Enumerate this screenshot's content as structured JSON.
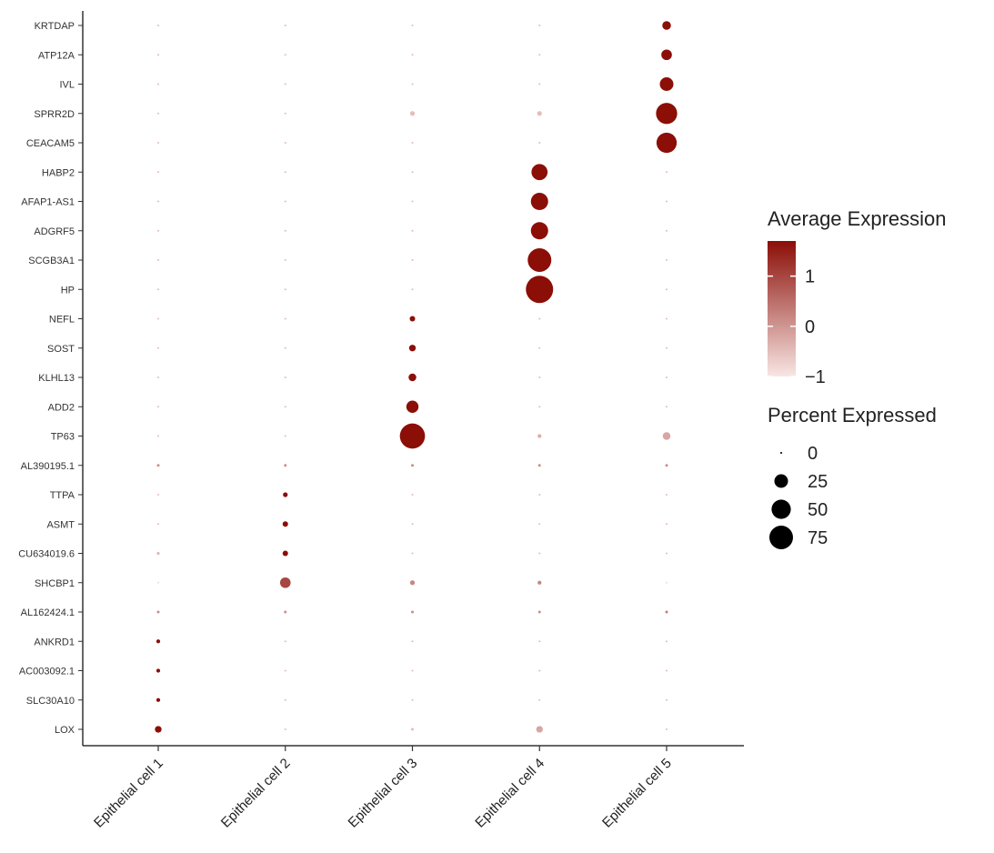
{
  "chart_data": {
    "type": "dotplot",
    "categories": [
      "Epithelial cell 1",
      "Epithelial cell 2",
      "Epithelial cell 3",
      "Epithelial cell 4",
      "Epithelial cell 5"
    ],
    "genes": [
      "KRTDAP",
      "ATP12A",
      "IVL",
      "SPRR2D",
      "CEACAM5",
      "HABP2",
      "AFAP1-AS1",
      "ADGRF5",
      "SCGB3A1",
      "HP",
      "NEFL",
      "SOST",
      "KLHL13",
      "ADD2",
      "TP63",
      "AL390195.1",
      "TTPA",
      "ASMT",
      "CU634019.6",
      "SHCBP1",
      "AL162424.1",
      "ANKRD1",
      "AC003092.1",
      "SLC30A10",
      "LOX"
    ],
    "points": [
      {
        "gene": "KRTDAP",
        "cell": "Epithelial cell 1",
        "pct": 0.5,
        "avg": -0.5
      },
      {
        "gene": "KRTDAP",
        "cell": "Epithelial cell 2",
        "pct": 0.5,
        "avg": -0.5
      },
      {
        "gene": "KRTDAP",
        "cell": "Epithelial cell 3",
        "pct": 0.5,
        "avg": -0.5
      },
      {
        "gene": "KRTDAP",
        "cell": "Epithelial cell 4",
        "pct": 0.5,
        "avg": -0.5
      },
      {
        "gene": "KRTDAP",
        "cell": "Epithelial cell 5",
        "pct": 10,
        "avg": 1.7
      },
      {
        "gene": "ATP12A",
        "cell": "Epithelial cell 1",
        "pct": 0.5,
        "avg": -0.5
      },
      {
        "gene": "ATP12A",
        "cell": "Epithelial cell 2",
        "pct": 0.5,
        "avg": -0.5
      },
      {
        "gene": "ATP12A",
        "cell": "Epithelial cell 3",
        "pct": 0.5,
        "avg": -0.5
      },
      {
        "gene": "ATP12A",
        "cell": "Epithelial cell 4",
        "pct": 0.5,
        "avg": -0.5
      },
      {
        "gene": "ATP12A",
        "cell": "Epithelial cell 5",
        "pct": 15,
        "avg": 1.7
      },
      {
        "gene": "IVL",
        "cell": "Epithelial cell 1",
        "pct": 0.5,
        "avg": -0.5
      },
      {
        "gene": "IVL",
        "cell": "Epithelial cell 2",
        "pct": 0.5,
        "avg": -0.5
      },
      {
        "gene": "IVL",
        "cell": "Epithelial cell 3",
        "pct": 0.5,
        "avg": -0.5
      },
      {
        "gene": "IVL",
        "cell": "Epithelial cell 4",
        "pct": 0.5,
        "avg": -0.5
      },
      {
        "gene": "IVL",
        "cell": "Epithelial cell 5",
        "pct": 25,
        "avg": 1.7
      },
      {
        "gene": "SPRR2D",
        "cell": "Epithelial cell 1",
        "pct": 0.5,
        "avg": -0.5
      },
      {
        "gene": "SPRR2D",
        "cell": "Epithelial cell 2",
        "pct": 0.5,
        "avg": -0.5
      },
      {
        "gene": "SPRR2D",
        "cell": "Epithelial cell 3",
        "pct": 3,
        "avg": -0.5
      },
      {
        "gene": "SPRR2D",
        "cell": "Epithelial cell 4",
        "pct": 3,
        "avg": -0.5
      },
      {
        "gene": "SPRR2D",
        "cell": "Epithelial cell 5",
        "pct": 60,
        "avg": 1.7
      },
      {
        "gene": "CEACAM5",
        "cell": "Epithelial cell 1",
        "pct": 0.5,
        "avg": -0.5
      },
      {
        "gene": "CEACAM5",
        "cell": "Epithelial cell 2",
        "pct": 0.5,
        "avg": -0.5
      },
      {
        "gene": "CEACAM5",
        "cell": "Epithelial cell 3",
        "pct": 0.5,
        "avg": -0.5
      },
      {
        "gene": "CEACAM5",
        "cell": "Epithelial cell 4",
        "pct": 0.5,
        "avg": -0.5
      },
      {
        "gene": "CEACAM5",
        "cell": "Epithelial cell 5",
        "pct": 55,
        "avg": 1.7
      },
      {
        "gene": "HABP2",
        "cell": "Epithelial cell 1",
        "pct": 0.5,
        "avg": -0.5
      },
      {
        "gene": "HABP2",
        "cell": "Epithelial cell 2",
        "pct": 0.5,
        "avg": -0.5
      },
      {
        "gene": "HABP2",
        "cell": "Epithelial cell 3",
        "pct": 0.5,
        "avg": -0.5
      },
      {
        "gene": "HABP2",
        "cell": "Epithelial cell 4",
        "pct": 35,
        "avg": 1.7
      },
      {
        "gene": "HABP2",
        "cell": "Epithelial cell 5",
        "pct": 0.5,
        "avg": -0.5
      },
      {
        "gene": "AFAP1-AS1",
        "cell": "Epithelial cell 1",
        "pct": 0.5,
        "avg": -0.5
      },
      {
        "gene": "AFAP1-AS1",
        "cell": "Epithelial cell 2",
        "pct": 0.5,
        "avg": -0.5
      },
      {
        "gene": "AFAP1-AS1",
        "cell": "Epithelial cell 3",
        "pct": 0.5,
        "avg": -0.5
      },
      {
        "gene": "AFAP1-AS1",
        "cell": "Epithelial cell 4",
        "pct": 40,
        "avg": 1.7
      },
      {
        "gene": "AFAP1-AS1",
        "cell": "Epithelial cell 5",
        "pct": 0.5,
        "avg": -0.5
      },
      {
        "gene": "ADGRF5",
        "cell": "Epithelial cell 1",
        "pct": 0.5,
        "avg": -0.5
      },
      {
        "gene": "ADGRF5",
        "cell": "Epithelial cell 2",
        "pct": 0.5,
        "avg": -0.5
      },
      {
        "gene": "ADGRF5",
        "cell": "Epithelial cell 3",
        "pct": 0.5,
        "avg": -0.5
      },
      {
        "gene": "ADGRF5",
        "cell": "Epithelial cell 4",
        "pct": 40,
        "avg": 1.7
      },
      {
        "gene": "ADGRF5",
        "cell": "Epithelial cell 5",
        "pct": 0.5,
        "avg": -0.5
      },
      {
        "gene": "SCGB3A1",
        "cell": "Epithelial cell 1",
        "pct": 0.5,
        "avg": -0.5
      },
      {
        "gene": "SCGB3A1",
        "cell": "Epithelial cell 2",
        "pct": 0.5,
        "avg": -0.5
      },
      {
        "gene": "SCGB3A1",
        "cell": "Epithelial cell 3",
        "pct": 0.5,
        "avg": -0.5
      },
      {
        "gene": "SCGB3A1",
        "cell": "Epithelial cell 4",
        "pct": 75,
        "avg": 1.7
      },
      {
        "gene": "SCGB3A1",
        "cell": "Epithelial cell 5",
        "pct": 0.5,
        "avg": -0.5
      },
      {
        "gene": "HP",
        "cell": "Epithelial cell 1",
        "pct": 0.5,
        "avg": -0.5
      },
      {
        "gene": "HP",
        "cell": "Epithelial cell 2",
        "pct": 0.5,
        "avg": -0.5
      },
      {
        "gene": "HP",
        "cell": "Epithelial cell 3",
        "pct": 0.5,
        "avg": -0.5
      },
      {
        "gene": "HP",
        "cell": "Epithelial cell 4",
        "pct": 100,
        "avg": 1.7
      },
      {
        "gene": "HP",
        "cell": "Epithelial cell 5",
        "pct": 0.5,
        "avg": -0.5
      },
      {
        "gene": "NEFL",
        "cell": "Epithelial cell 1",
        "pct": 0.5,
        "avg": -0.5
      },
      {
        "gene": "NEFL",
        "cell": "Epithelial cell 2",
        "pct": 0.5,
        "avg": -0.5
      },
      {
        "gene": "NEFL",
        "cell": "Epithelial cell 3",
        "pct": 4,
        "avg": 1.7
      },
      {
        "gene": "NEFL",
        "cell": "Epithelial cell 4",
        "pct": 0.5,
        "avg": -0.5
      },
      {
        "gene": "NEFL",
        "cell": "Epithelial cell 5",
        "pct": 0.5,
        "avg": -0.5
      },
      {
        "gene": "SOST",
        "cell": "Epithelial cell 1",
        "pct": 0.5,
        "avg": -0.5
      },
      {
        "gene": "SOST",
        "cell": "Epithelial cell 2",
        "pct": 0.5,
        "avg": -0.5
      },
      {
        "gene": "SOST",
        "cell": "Epithelial cell 3",
        "pct": 6,
        "avg": 1.7
      },
      {
        "gene": "SOST",
        "cell": "Epithelial cell 4",
        "pct": 0.5,
        "avg": -0.5
      },
      {
        "gene": "SOST",
        "cell": "Epithelial cell 5",
        "pct": 0.5,
        "avg": -0.5
      },
      {
        "gene": "KLHL13",
        "cell": "Epithelial cell 1",
        "pct": 0.5,
        "avg": -0.5
      },
      {
        "gene": "KLHL13",
        "cell": "Epithelial cell 2",
        "pct": 0.5,
        "avg": -0.5
      },
      {
        "gene": "KLHL13",
        "cell": "Epithelial cell 3",
        "pct": 8,
        "avg": 1.7
      },
      {
        "gene": "KLHL13",
        "cell": "Epithelial cell 4",
        "pct": 0.5,
        "avg": -0.5
      },
      {
        "gene": "KLHL13",
        "cell": "Epithelial cell 5",
        "pct": 0.5,
        "avg": -0.5
      },
      {
        "gene": "ADD2",
        "cell": "Epithelial cell 1",
        "pct": 0.5,
        "avg": -0.5
      },
      {
        "gene": "ADD2",
        "cell": "Epithelial cell 2",
        "pct": 0.5,
        "avg": -0.5
      },
      {
        "gene": "ADD2",
        "cell": "Epithelial cell 3",
        "pct": 20,
        "avg": 1.7
      },
      {
        "gene": "ADD2",
        "cell": "Epithelial cell 4",
        "pct": 0.5,
        "avg": -0.5
      },
      {
        "gene": "ADD2",
        "cell": "Epithelial cell 5",
        "pct": 0.5,
        "avg": -0.5
      },
      {
        "gene": "TP63",
        "cell": "Epithelial cell 1",
        "pct": 0.5,
        "avg": -0.5
      },
      {
        "gene": "TP63",
        "cell": "Epithelial cell 2",
        "pct": 0.5,
        "avg": -0.5
      },
      {
        "gene": "TP63",
        "cell": "Epithelial cell 3",
        "pct": 85,
        "avg": 1.7
      },
      {
        "gene": "TP63",
        "cell": "Epithelial cell 4",
        "pct": 2,
        "avg": -0.3
      },
      {
        "gene": "TP63",
        "cell": "Epithelial cell 5",
        "pct": 8,
        "avg": -0.2
      },
      {
        "gene": "AL390195.1",
        "cell": "Epithelial cell 1",
        "pct": 1,
        "avg": 0.1
      },
      {
        "gene": "AL390195.1",
        "cell": "Epithelial cell 2",
        "pct": 1,
        "avg": 0.1
      },
      {
        "gene": "AL390195.1",
        "cell": "Epithelial cell 3",
        "pct": 1,
        "avg": 0.1
      },
      {
        "gene": "AL390195.1",
        "cell": "Epithelial cell 4",
        "pct": 1,
        "avg": 0.1
      },
      {
        "gene": "AL390195.1",
        "cell": "Epithelial cell 5",
        "pct": 1,
        "avg": 0.1
      },
      {
        "gene": "TTPA",
        "cell": "Epithelial cell 1",
        "pct": 0.5,
        "avg": -0.5
      },
      {
        "gene": "TTPA",
        "cell": "Epithelial cell 2",
        "pct": 3,
        "avg": 1.7
      },
      {
        "gene": "TTPA",
        "cell": "Epithelial cell 3",
        "pct": 0.5,
        "avg": -0.5
      },
      {
        "gene": "TTPA",
        "cell": "Epithelial cell 4",
        "pct": 0.5,
        "avg": -0.5
      },
      {
        "gene": "TTPA",
        "cell": "Epithelial cell 5",
        "pct": 0.5,
        "avg": -0.5
      },
      {
        "gene": "ASMT",
        "cell": "Epithelial cell 1",
        "pct": 0.5,
        "avg": -0.5
      },
      {
        "gene": "ASMT",
        "cell": "Epithelial cell 2",
        "pct": 4,
        "avg": 1.7
      },
      {
        "gene": "ASMT",
        "cell": "Epithelial cell 3",
        "pct": 0.5,
        "avg": -0.5
      },
      {
        "gene": "ASMT",
        "cell": "Epithelial cell 4",
        "pct": 0.5,
        "avg": -0.5
      },
      {
        "gene": "ASMT",
        "cell": "Epithelial cell 5",
        "pct": 0.5,
        "avg": -0.5
      },
      {
        "gene": "CU634019.6",
        "cell": "Epithelial cell 1",
        "pct": 1,
        "avg": -0.3
      },
      {
        "gene": "CU634019.6",
        "cell": "Epithelial cell 2",
        "pct": 4,
        "avg": 1.7
      },
      {
        "gene": "CU634019.6",
        "cell": "Epithelial cell 3",
        "pct": 0.5,
        "avg": -0.5
      },
      {
        "gene": "CU634019.6",
        "cell": "Epithelial cell 4",
        "pct": 0.5,
        "avg": -0.5
      },
      {
        "gene": "CU634019.6",
        "cell": "Epithelial cell 5",
        "pct": 0.5,
        "avg": -0.5
      },
      {
        "gene": "SHCBP1",
        "cell": "Epithelial cell 1",
        "pct": 0.3,
        "avg": -0.8
      },
      {
        "gene": "SHCBP1",
        "cell": "Epithelial cell 2",
        "pct": 15,
        "avg": 1.0
      },
      {
        "gene": "SHCBP1",
        "cell": "Epithelial cell 3",
        "pct": 3,
        "avg": 0.2
      },
      {
        "gene": "SHCBP1",
        "cell": "Epithelial cell 4",
        "pct": 2,
        "avg": 0.2
      },
      {
        "gene": "SHCBP1",
        "cell": "Epithelial cell 5",
        "pct": 0.3,
        "avg": -0.8
      },
      {
        "gene": "AL162424.1",
        "cell": "Epithelial cell 1",
        "pct": 1,
        "avg": 0.1
      },
      {
        "gene": "AL162424.1",
        "cell": "Epithelial cell 2",
        "pct": 1,
        "avg": 0.1
      },
      {
        "gene": "AL162424.1",
        "cell": "Epithelial cell 3",
        "pct": 1,
        "avg": 0.1
      },
      {
        "gene": "AL162424.1",
        "cell": "Epithelial cell 4",
        "pct": 1,
        "avg": 0.1
      },
      {
        "gene": "AL162424.1",
        "cell": "Epithelial cell 5",
        "pct": 1,
        "avg": 0.3
      },
      {
        "gene": "ANKRD1",
        "cell": "Epithelial cell 1",
        "pct": 2,
        "avg": 1.7
      },
      {
        "gene": "ANKRD1",
        "cell": "Epithelial cell 2",
        "pct": 0.5,
        "avg": -0.5
      },
      {
        "gene": "ANKRD1",
        "cell": "Epithelial cell 3",
        "pct": 0.5,
        "avg": -0.5
      },
      {
        "gene": "ANKRD1",
        "cell": "Epithelial cell 4",
        "pct": 0.5,
        "avg": -0.5
      },
      {
        "gene": "ANKRD1",
        "cell": "Epithelial cell 5",
        "pct": 0.5,
        "avg": -0.5
      },
      {
        "gene": "AC003092.1",
        "cell": "Epithelial cell 1",
        "pct": 2,
        "avg": 1.7
      },
      {
        "gene": "AC003092.1",
        "cell": "Epithelial cell 2",
        "pct": 0.5,
        "avg": -0.5
      },
      {
        "gene": "AC003092.1",
        "cell": "Epithelial cell 3",
        "pct": 0.5,
        "avg": -0.5
      },
      {
        "gene": "AC003092.1",
        "cell": "Epithelial cell 4",
        "pct": 0.5,
        "avg": -0.5
      },
      {
        "gene": "AC003092.1",
        "cell": "Epithelial cell 5",
        "pct": 0.5,
        "avg": -0.5
      },
      {
        "gene": "SLC30A10",
        "cell": "Epithelial cell 1",
        "pct": 2,
        "avg": 1.7
      },
      {
        "gene": "SLC30A10",
        "cell": "Epithelial cell 2",
        "pct": 0.5,
        "avg": -0.5
      },
      {
        "gene": "SLC30A10",
        "cell": "Epithelial cell 3",
        "pct": 0.5,
        "avg": -0.5
      },
      {
        "gene": "SLC30A10",
        "cell": "Epithelial cell 4",
        "pct": 0.5,
        "avg": -0.5
      },
      {
        "gene": "SLC30A10",
        "cell": "Epithelial cell 5",
        "pct": 0.5,
        "avg": -0.5
      },
      {
        "gene": "LOX",
        "cell": "Epithelial cell 1",
        "pct": 6,
        "avg": 1.7
      },
      {
        "gene": "LOX",
        "cell": "Epithelial cell 2",
        "pct": 0.5,
        "avg": -0.5
      },
      {
        "gene": "LOX",
        "cell": "Epithelial cell 3",
        "pct": 1,
        "avg": -0.5
      },
      {
        "gene": "LOX",
        "cell": "Epithelial cell 4",
        "pct": 6,
        "avg": -0.2
      },
      {
        "gene": "LOX",
        "cell": "Epithelial cell 5",
        "pct": 0.5,
        "avg": -0.5
      }
    ],
    "xlabel": "",
    "ylabel": "",
    "grid": false,
    "color_legend": {
      "title": "Average Expression",
      "ticks": [
        1,
        0,
        -1
      ],
      "tick_labels": [
        "1",
        "0",
        "−1"
      ],
      "range": [
        -1,
        1.7
      ],
      "color_low": "#f8e6e4",
      "color_high": "#8b0e07"
    },
    "size_legend": {
      "title": "Percent Expressed",
      "values": [
        0,
        25,
        50,
        75
      ],
      "labels": [
        "0",
        "25",
        "50",
        "75"
      ]
    },
    "legend_position": "right"
  }
}
